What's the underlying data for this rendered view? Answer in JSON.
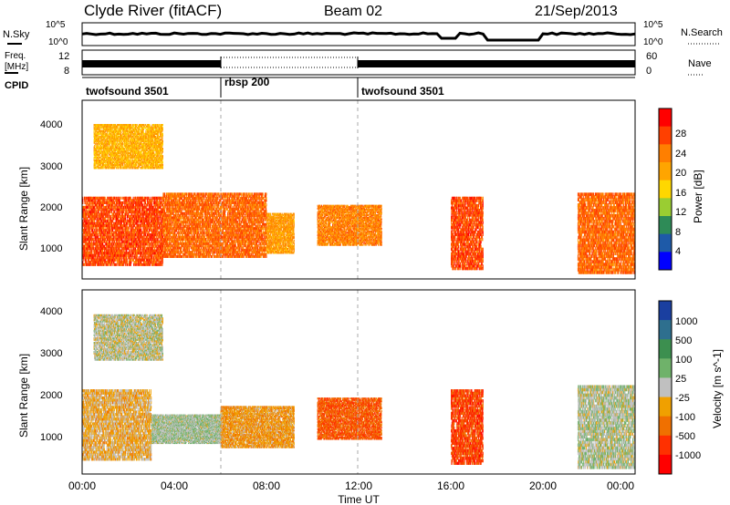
{
  "header": {
    "station": "Clyde River (fitACF)",
    "beam": "Beam 02",
    "date": "21/Sep/2013"
  },
  "top_panels": {
    "nsky_label": "N.Sky",
    "nsky_ticks": [
      "10^5",
      "10^0"
    ],
    "nsearch_label": "N.Search",
    "nsearch_ticks": [
      "10^5",
      "10^0"
    ],
    "freq_label_1": "Freq.",
    "freq_label_2": "[MHz]",
    "freq_ticks": [
      "12",
      "8"
    ],
    "nave_label": "Nave",
    "nave_ticks": [
      "60",
      "0"
    ],
    "cpid_label": "CPID"
  },
  "cpid_segments": [
    {
      "name": "twofsound 3501",
      "start_hour": 0,
      "end_hour": 6
    },
    {
      "name": "rbsp 200",
      "start_hour": 6,
      "end_hour": 12
    },
    {
      "name": "twofsound 3501",
      "start_hour": 12,
      "end_hour": 24
    }
  ],
  "x_axis": {
    "label": "Time UT",
    "ticks": [
      "00:00",
      "04:00",
      "08:00",
      "12:00",
      "16:00",
      "20:00",
      "00:00"
    ]
  },
  "power_panel": {
    "ylabel": "Slant Range [km]",
    "yticks": [
      "4000",
      "3000",
      "2000",
      "1000"
    ],
    "colorbar_label": "Power [dB]",
    "colorbar_ticks": [
      "28",
      "24",
      "20",
      "16",
      "12",
      "8",
      "4"
    ],
    "colors": [
      "#ff0000",
      "#ff4000",
      "#ff7f00",
      "#ffa500",
      "#ffd700",
      "#9acd32",
      "#2e8b57",
      "#1e5aa8",
      "#0000ff"
    ]
  },
  "velocity_panel": {
    "ylabel": "Slant Range [km]",
    "yticks": [
      "4000",
      "3000",
      "2000",
      "1000"
    ],
    "colorbar_label": "Velocity [m s^-1]",
    "colorbar_ticks": [
      "1000",
      "500",
      "100",
      "25",
      "-25",
      "-100",
      "-500",
      "-1000"
    ],
    "colors": [
      "#1a3fa0",
      "#2e6f8e",
      "#3c8f4f",
      "#6fb26a",
      "#c0c0c0",
      "#f0a000",
      "#f07000",
      "#ff3000",
      "#ff0000"
    ]
  },
  "chart_data": [
    {
      "type": "heatmap",
      "title": "Power",
      "xlabel": "Time UT",
      "ylabel": "Slant Range [km]",
      "xlim": [
        0,
        24
      ],
      "ylim": [
        180,
        4600
      ],
      "colorbar": {
        "label": "Power [dB]",
        "range": [
          0,
          30
        ],
        "ticks": [
          4,
          8,
          12,
          16,
          20,
          24,
          28
        ]
      },
      "echo_regions": [
        {
          "t_start": 0.0,
          "t_end": 3.5,
          "range_min": 500,
          "range_max": 2200,
          "value": 26
        },
        {
          "t_start": 0.5,
          "t_end": 3.5,
          "range_min": 2900,
          "range_max": 4000,
          "value": 18
        },
        {
          "t_start": 3.5,
          "t_end": 8.0,
          "range_min": 700,
          "range_max": 2300,
          "value": 24
        },
        {
          "t_start": 8.0,
          "t_end": 9.2,
          "range_min": 800,
          "range_max": 1800,
          "value": 20
        },
        {
          "t_start": 10.2,
          "t_end": 13.0,
          "range_min": 1000,
          "range_max": 2000,
          "value": 22
        },
        {
          "t_start": 16.0,
          "t_end": 17.4,
          "range_min": 400,
          "range_max": 2200,
          "value": 26
        },
        {
          "t_start": 21.5,
          "t_end": 24.0,
          "range_min": 300,
          "range_max": 2300,
          "value": 24
        }
      ]
    },
    {
      "type": "heatmap",
      "title": "Velocity",
      "xlabel": "Time UT",
      "ylabel": "Slant Range [km]",
      "xlim": [
        0,
        24
      ],
      "ylim": [
        180,
        4600
      ],
      "colorbar": {
        "label": "Velocity [m s^-1]",
        "range": [
          -1000,
          1000
        ],
        "ticks": [
          1000,
          500,
          100,
          25,
          -25,
          -100,
          -500,
          -1000
        ]
      },
      "echo_regions": [
        {
          "t_start": 0.0,
          "t_end": 3.0,
          "range_min": 500,
          "range_max": 2200,
          "value": -200
        },
        {
          "t_start": 3.0,
          "t_end": 6.0,
          "range_min": 900,
          "range_max": 1600,
          "value": 100
        },
        {
          "t_start": 0.5,
          "t_end": 3.5,
          "range_min": 2900,
          "range_max": 4000,
          "value": 0
        },
        {
          "t_start": 6.0,
          "t_end": 9.2,
          "range_min": 800,
          "range_max": 1800,
          "value": -300
        },
        {
          "t_start": 10.2,
          "t_end": 13.0,
          "range_min": 1000,
          "range_max": 2000,
          "value": -600
        },
        {
          "t_start": 16.0,
          "t_end": 17.4,
          "range_min": 400,
          "range_max": 2200,
          "value": -700
        },
        {
          "t_start": 21.5,
          "t_end": 24.0,
          "range_min": 300,
          "range_max": 2300,
          "value": 50
        }
      ]
    }
  ]
}
